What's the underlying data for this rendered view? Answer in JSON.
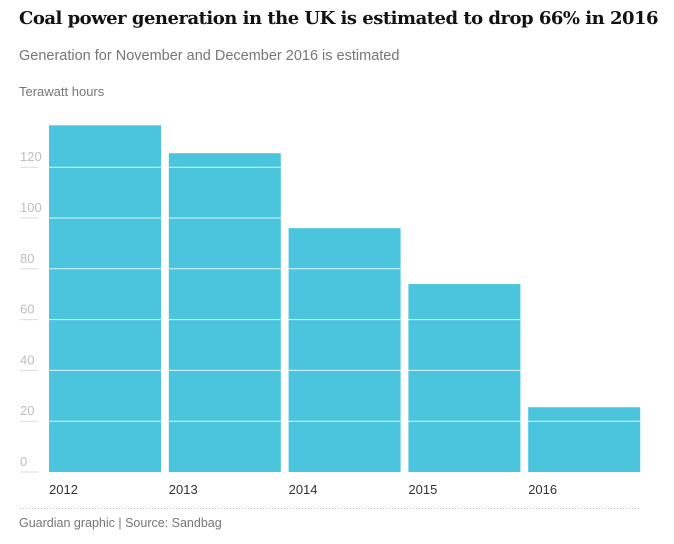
{
  "chart_data": {
    "type": "bar",
    "title": "Coal power generation in the UK is estimated to drop 66% in 2016",
    "subtitle": "Generation for November and December 2016 is estimated",
    "ylabel": "Terawatt hours",
    "xlabel": "",
    "categories": [
      "2012",
      "2013",
      "2014",
      "2015",
      "2016"
    ],
    "values": [
      136.5,
      125.5,
      96,
      74,
      25.5
    ],
    "ylim": [
      0,
      137
    ],
    "yticks": [
      0,
      20,
      40,
      60,
      80,
      100,
      120
    ],
    "grid": true,
    "bar_color": "#4bc5de",
    "source": "Guardian graphic | Source: Sandbag"
  }
}
